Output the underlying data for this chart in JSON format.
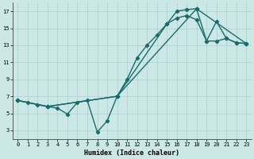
{
  "xlabel": "Humidex (Indice chaleur)",
  "bg_color": "#cce8e6",
  "grid_color": "#afd4d0",
  "line_color": "#1a6b6b",
  "marker": "D",
  "markersize": 2.2,
  "linewidth": 1.0,
  "xlim": [
    -0.5,
    23.5
  ],
  "ylim": [
    2,
    18
  ],
  "xticks": [
    0,
    1,
    2,
    3,
    4,
    5,
    6,
    7,
    8,
    9,
    10,
    11,
    12,
    13,
    14,
    15,
    16,
    17,
    18,
    19,
    20,
    21,
    22,
    23
  ],
  "yticks": [
    3,
    5,
    7,
    9,
    11,
    13,
    15,
    17
  ],
  "line1_x": [
    0,
    1,
    2,
    3,
    4,
    5,
    6,
    7,
    8,
    9,
    10,
    11,
    12,
    13,
    14,
    15,
    16,
    17,
    18,
    19,
    20,
    21,
    22,
    23
  ],
  "line1_y": [
    6.5,
    6.3,
    6.0,
    5.8,
    5.6,
    4.9,
    6.3,
    6.5,
    2.8,
    4.1,
    7.0,
    9.0,
    11.5,
    13.0,
    14.2,
    15.5,
    17.0,
    17.2,
    17.3,
    13.5,
    13.5,
    13.8,
    13.3,
    13.2
  ],
  "line2_x": [
    0,
    3,
    10,
    15,
    16,
    17,
    18,
    19,
    20,
    21,
    22,
    23
  ],
  "line2_y": [
    6.5,
    5.8,
    7.0,
    15.5,
    16.2,
    16.5,
    16.0,
    13.5,
    15.8,
    13.8,
    13.3,
    13.2
  ],
  "line3_x": [
    0,
    3,
    10,
    18,
    23
  ],
  "line3_y": [
    6.5,
    5.8,
    7.0,
    17.3,
    13.2
  ]
}
